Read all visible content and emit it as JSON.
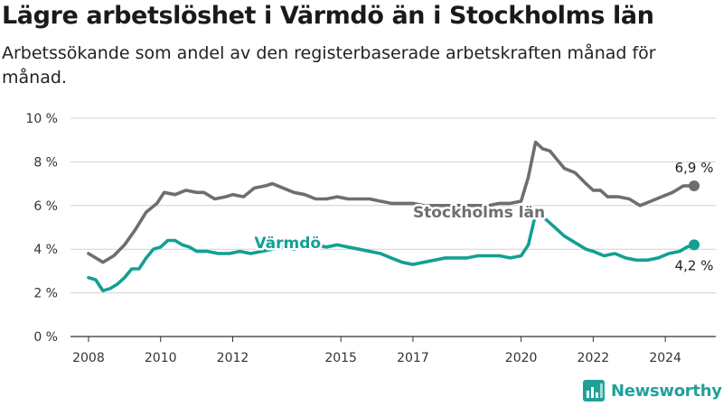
{
  "title": "Lägre arbetslöshet i Värmdö än i Stockholms län",
  "subtitle": "Arbetssökande som andel av den registerbaserade arbetskraften månad för månad.",
  "brand": "Newsworthy",
  "colors": {
    "stockholm": "#6e6e70",
    "varmdo": "#12a093",
    "grid": "#d0d0d0",
    "axis": "#333333",
    "brand": "#1fa19a"
  },
  "chart_data": {
    "type": "line",
    "x_ticks": [
      "2008",
      "2010",
      "2012",
      "2015",
      "2017",
      "2020",
      "2022",
      "2024"
    ],
    "x_tick_values": [
      2008,
      2010,
      2012,
      2015,
      2017,
      2020,
      2022,
      2024
    ],
    "y_ticks": [
      "0 %",
      "2 %",
      "4 %",
      "6 %",
      "8 %",
      "10 %"
    ],
    "y_tick_values": [
      0,
      2,
      4,
      6,
      8,
      10
    ],
    "xlim": [
      2007.5,
      2025.4
    ],
    "ylim": [
      0,
      10
    ],
    "grid": true,
    "series": [
      {
        "name": "Stockholms län",
        "color": "#6e6e70",
        "end_label": "6,9 %",
        "x": [
          2008.0,
          2008.4,
          2008.7,
          2009.0,
          2009.3,
          2009.6,
          2009.9,
          2010.1,
          2010.4,
          2010.7,
          2011.0,
          2011.2,
          2011.5,
          2011.8,
          2012.0,
          2012.3,
          2012.6,
          2012.9,
          2013.1,
          2013.4,
          2013.7,
          2014.0,
          2014.3,
          2014.6,
          2014.9,
          2015.2,
          2015.5,
          2015.8,
          2016.1,
          2016.4,
          2016.7,
          2017.0,
          2017.3,
          2017.6,
          2017.9,
          2018.2,
          2018.5,
          2018.8,
          2019.1,
          2019.4,
          2019.7,
          2020.0,
          2020.2,
          2020.4,
          2020.6,
          2020.8,
          2021.0,
          2021.2,
          2021.5,
          2021.8,
          2022.0,
          2022.2,
          2022.4,
          2022.7,
          2023.0,
          2023.3,
          2023.6,
          2023.9,
          2024.2,
          2024.5,
          2024.8
        ],
        "y": [
          3.8,
          3.4,
          3.7,
          4.2,
          4.9,
          5.7,
          6.1,
          6.6,
          6.5,
          6.7,
          6.6,
          6.6,
          6.3,
          6.4,
          6.5,
          6.4,
          6.8,
          6.9,
          7.0,
          6.8,
          6.6,
          6.5,
          6.3,
          6.3,
          6.4,
          6.3,
          6.3,
          6.3,
          6.2,
          6.1,
          6.1,
          6.1,
          6.0,
          6.0,
          6.0,
          6.0,
          6.0,
          6.0,
          6.0,
          6.1,
          6.1,
          6.2,
          7.3,
          8.9,
          8.6,
          8.5,
          8.1,
          7.7,
          7.5,
          7.0,
          6.7,
          6.7,
          6.4,
          6.4,
          6.3,
          6.0,
          6.2,
          6.4,
          6.6,
          6.9,
          6.9
        ]
      },
      {
        "name": "Värmdö",
        "color": "#12a093",
        "end_label": "4,2 %",
        "x": [
          2008.0,
          2008.2,
          2008.4,
          2008.6,
          2008.8,
          2009.0,
          2009.2,
          2009.4,
          2009.6,
          2009.8,
          2010.0,
          2010.2,
          2010.4,
          2010.6,
          2010.8,
          2011.0,
          2011.3,
          2011.6,
          2011.9,
          2012.2,
          2012.5,
          2012.8,
          2013.1,
          2013.4,
          2013.7,
          2014.0,
          2014.3,
          2014.6,
          2014.9,
          2015.2,
          2015.5,
          2015.8,
          2016.1,
          2016.4,
          2016.7,
          2017.0,
          2017.3,
          2017.6,
          2017.9,
          2018.2,
          2018.5,
          2018.8,
          2019.1,
          2019.4,
          2019.7,
          2020.0,
          2020.2,
          2020.4,
          2020.6,
          2020.8,
          2021.0,
          2021.2,
          2021.5,
          2021.8,
          2022.0,
          2022.3,
          2022.6,
          2022.9,
          2023.2,
          2023.5,
          2023.8,
          2024.1,
          2024.4,
          2024.6,
          2024.8
        ],
        "y": [
          2.7,
          2.6,
          2.1,
          2.2,
          2.4,
          2.7,
          3.1,
          3.1,
          3.6,
          4.0,
          4.1,
          4.4,
          4.4,
          4.2,
          4.1,
          3.9,
          3.9,
          3.8,
          3.8,
          3.9,
          3.8,
          3.9,
          4.0,
          4.1,
          4.0,
          4.1,
          4.2,
          4.1,
          4.2,
          4.1,
          4.0,
          3.9,
          3.8,
          3.6,
          3.4,
          3.3,
          3.4,
          3.5,
          3.6,
          3.6,
          3.6,
          3.7,
          3.7,
          3.7,
          3.6,
          3.7,
          4.2,
          5.6,
          5.5,
          5.2,
          4.9,
          4.6,
          4.3,
          4.0,
          3.9,
          3.7,
          3.8,
          3.6,
          3.5,
          3.5,
          3.6,
          3.8,
          3.9,
          4.1,
          4.2
        ]
      }
    ]
  }
}
